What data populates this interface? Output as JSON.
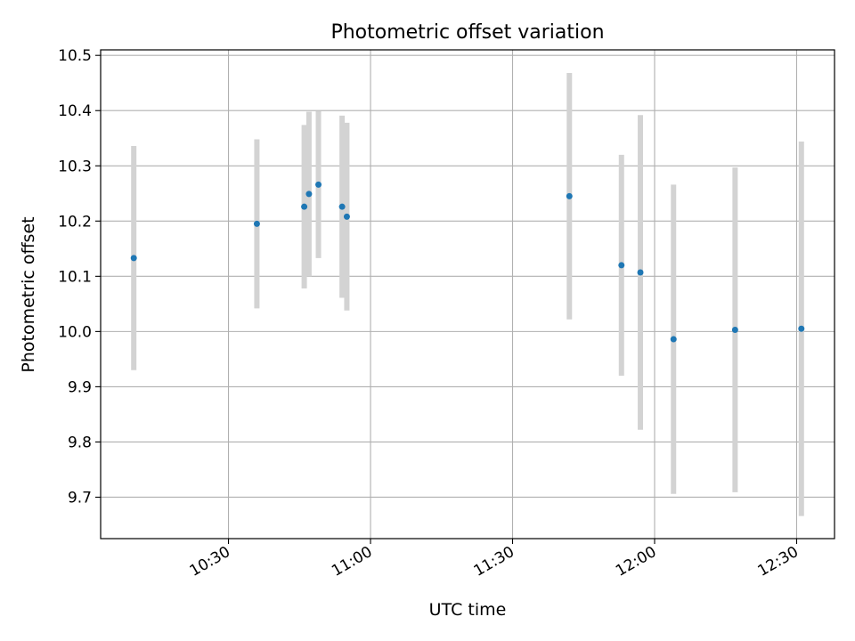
{
  "chart_data": {
    "type": "scatter",
    "title": "Photometric offset variation",
    "xlabel": "UTC time",
    "ylabel": "Photometric offset",
    "xlim": [
      "10:03",
      "12:38"
    ],
    "ylim": [
      9.625,
      10.51
    ],
    "grid": true,
    "x_ticks": [
      "10:30",
      "11:00",
      "11:30",
      "12:00",
      "12:30"
    ],
    "y_ticks": [
      "9.7",
      "9.8",
      "9.9",
      "10.0",
      "10.1",
      "10.2",
      "10.3",
      "10.4",
      "10.5"
    ],
    "series": [
      {
        "points": [
          {
            "x": "10:10",
            "y": 10.133,
            "err": 0.203
          },
          {
            "x": "10:36",
            "y": 10.195,
            "err": 0.153
          },
          {
            "x": "10:46",
            "y": 10.226,
            "err": 0.148
          },
          {
            "x": "10:47",
            "y": 10.249,
            "err": 0.149
          },
          {
            "x": "10:49",
            "y": 10.266,
            "err": 0.133
          },
          {
            "x": "10:54",
            "y": 10.226,
            "err": 0.165
          },
          {
            "x": "10:55",
            "y": 10.208,
            "err": 0.17
          },
          {
            "x": "11:42",
            "y": 10.245,
            "err": 0.223
          },
          {
            "x": "11:53",
            "y": 10.12,
            "err": 0.2
          },
          {
            "x": "11:57",
            "y": 10.107,
            "err": 0.285
          },
          {
            "x": "12:04",
            "y": 9.986,
            "err": 0.28
          },
          {
            "x": "12:17",
            "y": 10.003,
            "err": 0.294
          },
          {
            "x": "12:31",
            "y": 10.005,
            "err": 0.339
          }
        ]
      }
    ],
    "colors": {
      "marker": "#1f77b4",
      "errorbar": "#d3d3d3",
      "grid": "#b0b0b0",
      "axis": "#000000"
    }
  }
}
